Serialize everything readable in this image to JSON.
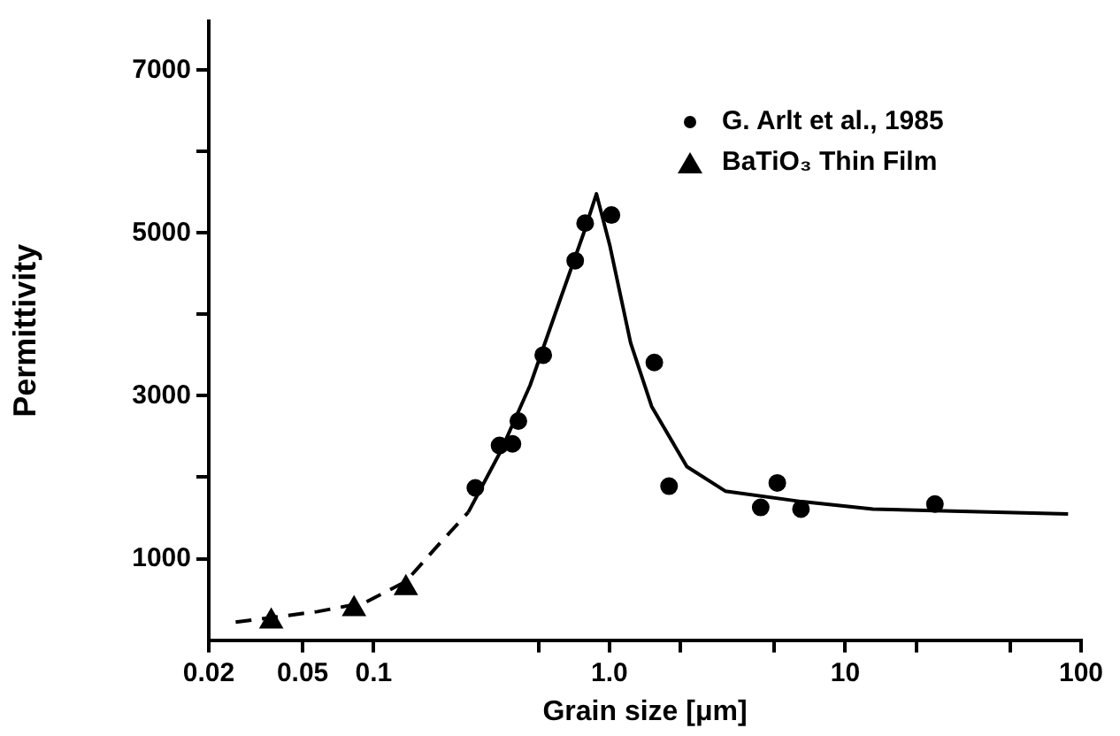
{
  "chart_data": {
    "type": "scatter",
    "xlabel": "Grain size [μm]",
    "ylabel": "Permittivity",
    "log": "x",
    "xlim": [
      0.02,
      100
    ],
    "ylim": [
      0,
      7600
    ],
    "xticks": [
      0.02,
      0.05,
      0.1,
      {
        "value": 0.5,
        "label": null
      },
      {
        "value": 1,
        "label": "1.0"
      },
      {
        "value": 2,
        "label": null
      },
      {
        "value": 5,
        "label": null
      },
      10,
      {
        "value": 20,
        "label": null
      },
      {
        "value": 50,
        "label": null
      },
      100
    ],
    "yticks": [
      1000,
      {
        "value": 2000,
        "label": null
      },
      3000,
      {
        "value": 4000,
        "label": null
      },
      5000,
      {
        "value": 6000,
        "label": null
      },
      7000
    ],
    "grid": false,
    "legend": "top right",
    "series": [
      {
        "name": "G. Arlt et al., 1985",
        "marker": "circle",
        "color": "#000000",
        "x": [
          0.27,
          0.342,
          0.388,
          0.411,
          0.524,
          0.716,
          0.789,
          1.02,
          1.55,
          1.79,
          4.38,
          5.15,
          6.49,
          24.0
        ],
        "values": [
          1870,
          2390,
          2410,
          2690,
          3500,
          4660,
          5120,
          5220,
          3410,
          1890,
          1630,
          1930,
          1610,
          1670
        ]
      },
      {
        "name": "BaTiO₃ Thin Film",
        "marker": "triangle",
        "color": "#000000",
        "x": [
          0.0368,
          0.0826,
          0.137
        ],
        "values": [
          230,
          380,
          640
        ]
      },
      {
        "type": "line",
        "marker": "none",
        "line_style": "dashed",
        "color": "#000000",
        "x": [
          0.026,
          0.0578,
          0.0917,
          0.137,
          0.183,
          0.252
        ],
        "values": [
          220,
          350,
          460,
          720,
          1130,
          1570
        ]
      },
      {
        "type": "line",
        "marker": "none",
        "line_style": "solid",
        "color": "#000000",
        "x": [
          0.252,
          0.346,
          0.461,
          0.616,
          0.776,
          0.881,
          1.005,
          1.23,
          1.51,
          2.13,
          3.1,
          6.56,
          13.1,
          88.1
        ],
        "values": [
          1570,
          2320,
          3130,
          4170,
          4990,
          5480,
          4840,
          3650,
          2870,
          2130,
          1830,
          1700,
          1610,
          1550
        ]
      }
    ]
  }
}
